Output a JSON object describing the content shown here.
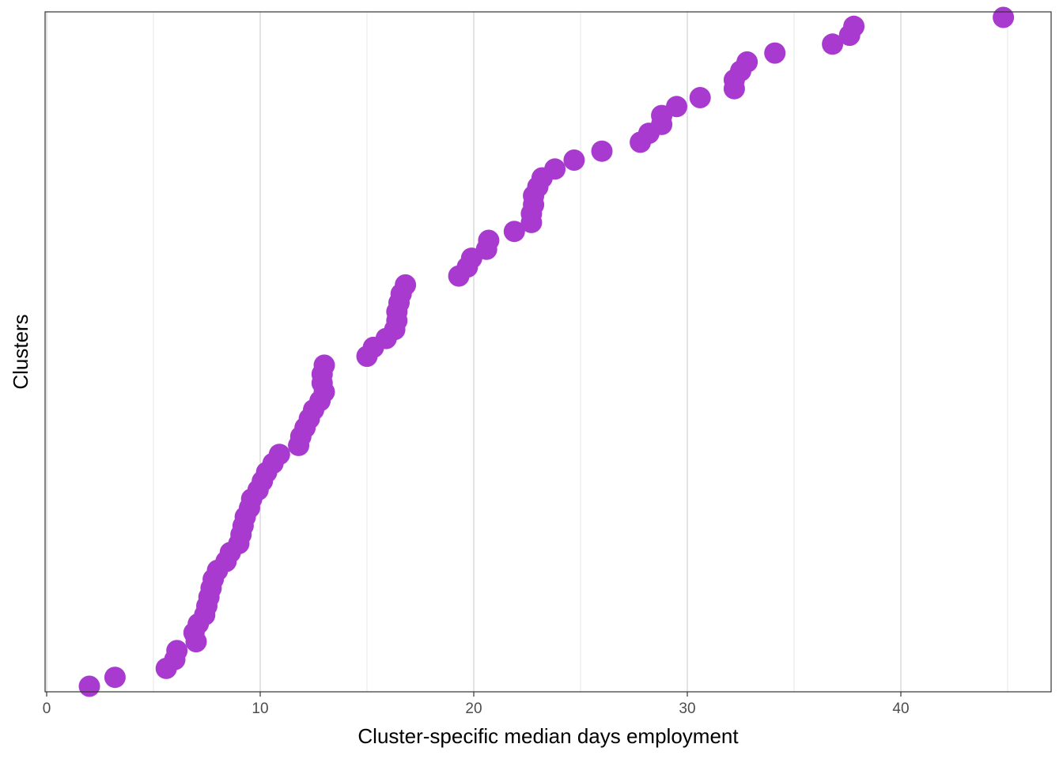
{
  "chart_data": {
    "type": "scatter",
    "title": "",
    "xlabel": "Cluster-specific median days employment",
    "ylabel": "Clusters",
    "xlim": [
      0,
      47
    ],
    "x_ticks": [
      0,
      10,
      20,
      30,
      40
    ],
    "x_tick_labels": [
      "0",
      "10",
      "20",
      "30",
      "40"
    ],
    "x_minor_gridlines": [
      5,
      15,
      25,
      35,
      45
    ],
    "y_tick_labels": [],
    "grid": "vertical only",
    "legend": "none",
    "point_color": "#A93ACF",
    "x": [
      2.0,
      3.2,
      5.6,
      6.0,
      6.1,
      7.0,
      6.9,
      7.1,
      7.4,
      7.5,
      7.6,
      7.7,
      7.8,
      8.0,
      8.4,
      8.6,
      9.0,
      9.1,
      9.2,
      9.3,
      9.5,
      9.6,
      9.9,
      10.1,
      10.3,
      10.6,
      10.9,
      11.8,
      11.9,
      12.1,
      12.3,
      12.5,
      12.8,
      13.0,
      12.9,
      12.9,
      13.0,
      15.0,
      15.3,
      15.9,
      16.3,
      16.4,
      16.4,
      16.5,
      16.6,
      16.8,
      19.3,
      19.7,
      19.9,
      20.6,
      20.7,
      21.9,
      22.7,
      22.7,
      22.8,
      22.8,
      23.0,
      23.2,
      23.8,
      24.7,
      26.0,
      27.8,
      28.2,
      28.8,
      28.8,
      29.5,
      30.6,
      32.2,
      32.2,
      32.5,
      32.8,
      34.1,
      36.8,
      37.6,
      37.8,
      44.8
    ],
    "y": [
      1,
      2,
      3,
      4,
      5,
      6,
      7,
      8,
      9,
      10,
      11,
      12,
      13,
      14,
      15,
      16,
      17,
      18,
      19,
      20,
      21,
      22,
      23,
      24,
      25,
      26,
      27,
      28,
      29,
      30,
      31,
      32,
      33,
      34,
      35,
      36,
      37,
      38,
      39,
      40,
      41,
      42,
      43,
      44,
      45,
      46,
      47,
      48,
      49,
      50,
      51,
      52,
      53,
      54,
      55,
      56,
      57,
      58,
      59,
      60,
      61,
      62,
      63,
      64,
      65,
      66,
      67,
      68,
      69,
      70,
      71,
      72,
      73,
      74,
      75,
      76
    ]
  }
}
